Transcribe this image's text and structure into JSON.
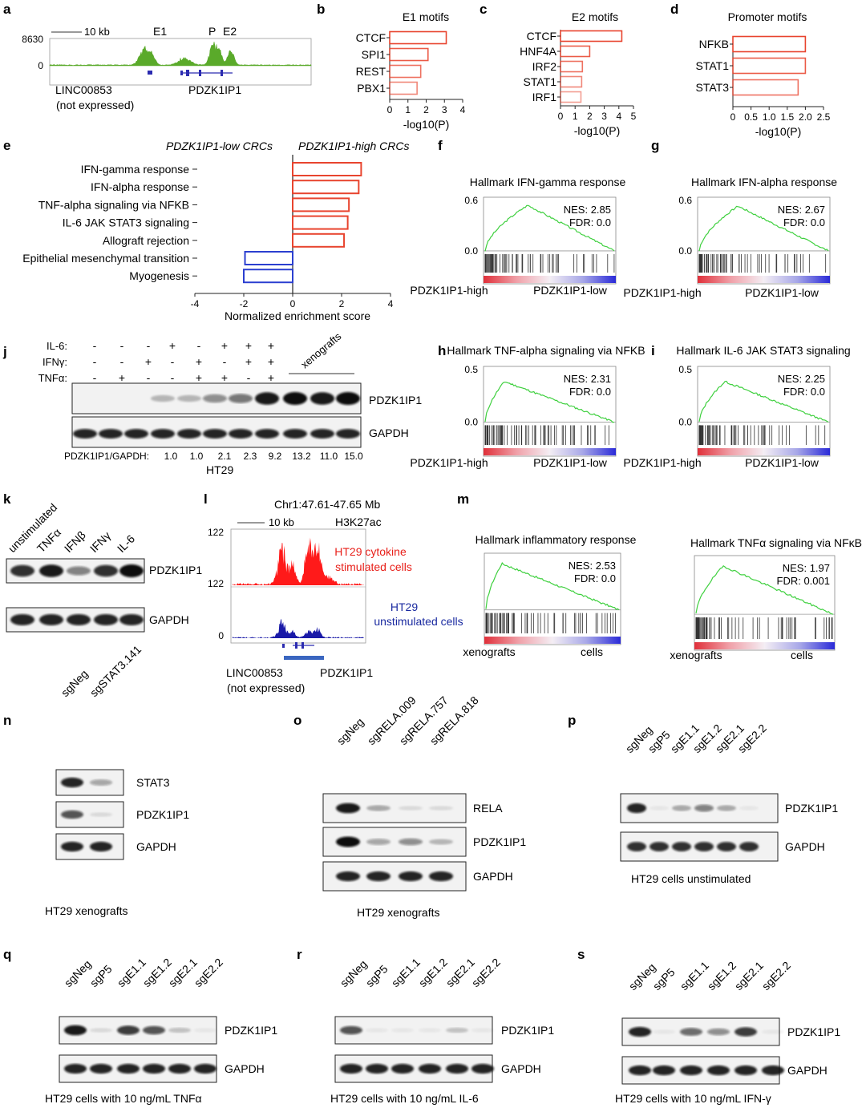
{
  "colors": {
    "red": "#e8442e",
    "blue": "#2b3fd0",
    "green": "#5aaa2a",
    "gsea_line": "#3fd03f",
    "gene_blue": "#2b2bb0"
  },
  "panel_a": {
    "label": "a",
    "scale": "10 kb",
    "ymax": "8630",
    "ymin": "0",
    "e1": "E1",
    "p": "P",
    "e2": "E2",
    "gene1": "LINC00853",
    "gene1_note": "(not expressed)",
    "gene2": "PDZK1IP1"
  },
  "panel_b": {
    "label": "b",
    "title": "E1 motifs",
    "names": [
      "CTCF",
      "SPI1",
      "REST",
      "PBX1"
    ],
    "values": [
      3.1,
      2.1,
      1.7,
      1.5
    ],
    "ticks": [
      "0",
      "1",
      "2",
      "3",
      "4"
    ],
    "xlabel": "-log10(P)"
  },
  "panel_c": {
    "label": "c",
    "title": "E2 motifs",
    "names": [
      "CTCF",
      "HNF4A",
      "IRF2",
      "STAT1",
      "IRF1"
    ],
    "values": [
      4.2,
      2.0,
      1.5,
      1.45,
      1.4
    ],
    "ticks": [
      "0",
      "1",
      "2",
      "3",
      "4",
      "5"
    ],
    "xlabel": "-log10(P)"
  },
  "panel_d": {
    "label": "d",
    "title": "Promoter motifs",
    "names": [
      "NFKB",
      "STAT1",
      "STAT3"
    ],
    "values": [
      2.0,
      2.0,
      1.8
    ],
    "ticks": [
      "0",
      "0.5",
      "1.0",
      "1.5",
      "2.0",
      "2.5"
    ],
    "xlabel": "-log10(P)"
  },
  "panel_e": {
    "label": "e",
    "left_header": "PDZK1IP1-low CRCs",
    "right_header": "PDZK1IP1-high CRCs",
    "names": [
      "IFN-gamma response",
      "IFN-alpha response",
      "TNF-alpha signaling via NFKB",
      "IL-6 JAK STAT3 signaling",
      "Allograft rejection",
      "Epithelial mesenchymal transition",
      "Myogenesis"
    ],
    "values": [
      2.8,
      2.7,
      2.3,
      2.25,
      2.1,
      -1.95,
      -2.0
    ],
    "ticks": [
      "-4",
      "-2",
      "0",
      "2",
      "4"
    ],
    "xlabel": "Normalized enrichment score"
  },
  "gsea": [
    {
      "label": "f",
      "title": "Hallmark IFN-gamma response",
      "nes": "NES: 2.85",
      "fdr": "FDR: 0.0",
      "ytop": "0.6",
      "ybot": "0.0",
      "left": "PDZK1IP1-high",
      "right": "PDZK1IP1-low"
    },
    {
      "label": "g",
      "title": "Hallmark IFN-alpha response",
      "nes": "NES: 2.67",
      "fdr": "FDR: 0.0",
      "ytop": "0.6",
      "ybot": "0.0",
      "left": "PDZK1IP1-high",
      "right": "PDZK1IP1-low"
    },
    {
      "label": "h",
      "title": "Hallmark TNF-alpha signaling via NFKB",
      "nes": "NES: 2.31",
      "fdr": "FDR: 0.0",
      "ytop": "0.5",
      "ybot": "0.0",
      "left": "PDZK1IP1-high",
      "right": "PDZK1IP1-low"
    },
    {
      "label": "i",
      "title": "Hallmark IL-6 JAK STAT3 signaling",
      "nes": "NES: 2.25",
      "fdr": "FDR: 0.0",
      "ytop": "0.5",
      "ybot": "0.0",
      "left": "PDZK1IP1-high",
      "right": "PDZK1IP1-low"
    },
    {
      "label": "m",
      "title": "Hallmark inflammatory response",
      "nes": "NES: 2.53",
      "fdr": "FDR: 0.0",
      "ytop": "",
      "ybot": "",
      "left": "xenografts",
      "right": "cells"
    },
    {
      "label": "",
      "title": "Hallmark TNFα signaling via NFκB",
      "nes": "NES: 1.97",
      "fdr": "FDR: 0.001",
      "ytop": "",
      "ybot": "",
      "left": "xenografts",
      "right": "cells"
    }
  ],
  "panel_j": {
    "label": "j",
    "row_il6": "IL-6:",
    "row_ifng": "IFNγ:",
    "row_tnfa": "TNFα:",
    "il6": [
      "-",
      "-",
      "-",
      "+",
      "-",
      "+",
      "+",
      "+"
    ],
    "ifng": [
      "-",
      "-",
      "+",
      "-",
      "+",
      "-",
      "+",
      "+"
    ],
    "tnfa": [
      "-",
      "+",
      "-",
      "-",
      "+",
      "+",
      "-",
      "+"
    ],
    "xeno": "xenografts",
    "band1": "PDZK1IP1",
    "band2": "GAPDH",
    "ratio_label": "PDZK1IP1/GAPDH:",
    "ratios": [
      "1.0",
      "1.0",
      "2.1",
      "2.3",
      "9.2",
      "13.2",
      "11.0",
      "15.0"
    ],
    "cell": "HT29"
  },
  "panel_k": {
    "label": "k",
    "lanes": [
      "unstimulated",
      "TNFα",
      "IFNβ",
      "IFNγ",
      "IL-6"
    ],
    "band1": "PDZK1IP1",
    "band2": "GAPDH"
  },
  "panel_l": {
    "label": "l",
    "coord": "Chr1:47.61-47.65 Mb",
    "mark": "H3K27ac",
    "scale": "10 kb",
    "ymax": "122",
    "ymin": "0",
    "red_label1": "HT29 cytokine",
    "red_label2": "stimulated cells",
    "blue_label1": "HT29",
    "blue_label2": "unstimulated cells",
    "gene1": "LINC00853",
    "gene1_note": "(not expressed)",
    "gene2": "PDZK1IP1"
  },
  "panel_n": {
    "label": "n",
    "lanes": [
      "sgNeg",
      "sgSTAT3.141"
    ],
    "bands": [
      "STAT3",
      "PDZK1IP1",
      "GAPDH"
    ],
    "caption": "HT29 xenografts"
  },
  "panel_o": {
    "label": "o",
    "lanes": [
      "sgNeg",
      "sgRELA.009",
      "sgRELA.757",
      "sgRELA.818"
    ],
    "bands": [
      "RELA",
      "PDZK1IP1",
      "GAPDH"
    ],
    "caption": "HT29 xenografts"
  },
  "panel_p": {
    "label": "p",
    "lanes": [
      "sgNeg",
      "sgP5",
      "sgE1.1",
      "sgE1.2",
      "sgE2.1",
      "sgE2.2"
    ],
    "bands": [
      "PDZK1IP1",
      "GAPDH"
    ],
    "caption": "HT29 cells unstimulated"
  },
  "panel_q": {
    "label": "q",
    "lanes": [
      "sgNeg",
      "sgP5",
      "sgE1.1",
      "sgE1.2",
      "sgE2.1",
      "sgE2.2"
    ],
    "bands": [
      "PDZK1IP1",
      "GAPDH"
    ],
    "caption": "HT29 cells with 10 ng/mL TNFα"
  },
  "panel_r": {
    "label": "r",
    "lanes": [
      "sgNeg",
      "sgP5",
      "sgE1.1",
      "sgE1.2",
      "sgE2.1",
      "sgE2.2"
    ],
    "bands": [
      "PDZK1IP1",
      "GAPDH"
    ],
    "caption": "HT29 cells with 10 ng/mL IL-6"
  },
  "panel_s": {
    "label": "s",
    "lanes": [
      "sgNeg",
      "sgP5",
      "sgE1.1",
      "sgE1.2",
      "sgE2.1",
      "sgE2.2"
    ],
    "bands": [
      "PDZK1IP1",
      "GAPDH"
    ],
    "caption": "HT29 cells with 10 ng/mL IFN-γ"
  },
  "chart_data": [
    {
      "type": "bar",
      "title": "E1 motifs",
      "categories": [
        "CTCF",
        "SPI1",
        "REST",
        "PBX1"
      ],
      "values": [
        3.1,
        2.1,
        1.7,
        1.5
      ],
      "xlabel": "-log10(P)",
      "xlim": [
        0,
        4
      ]
    },
    {
      "type": "bar",
      "title": "E2 motifs",
      "categories": [
        "CTCF",
        "HNF4A",
        "IRF2",
        "STAT1",
        "IRF1"
      ],
      "values": [
        4.2,
        2.0,
        1.5,
        1.45,
        1.4
      ],
      "xlabel": "-log10(P)",
      "xlim": [
        0,
        5
      ]
    },
    {
      "type": "bar",
      "title": "Promoter motifs",
      "categories": [
        "NFKB",
        "STAT1",
        "STAT3"
      ],
      "values": [
        2.0,
        2.0,
        1.8
      ],
      "xlabel": "-log10(P)",
      "xlim": [
        0,
        2.5
      ]
    },
    {
      "type": "bar",
      "title": "",
      "categories": [
        "IFN-gamma response",
        "IFN-alpha response",
        "TNF-alpha signaling via NFKB",
        "IL-6 JAK STAT3 signaling",
        "Allograft rejection",
        "Epithelial mesenchymal transition",
        "Myogenesis"
      ],
      "values": [
        2.8,
        2.7,
        2.3,
        2.25,
        2.1,
        -1.95,
        -2.0
      ],
      "xlabel": "Normalized enrichment score",
      "xlim": [
        -4,
        4
      ]
    }
  ]
}
